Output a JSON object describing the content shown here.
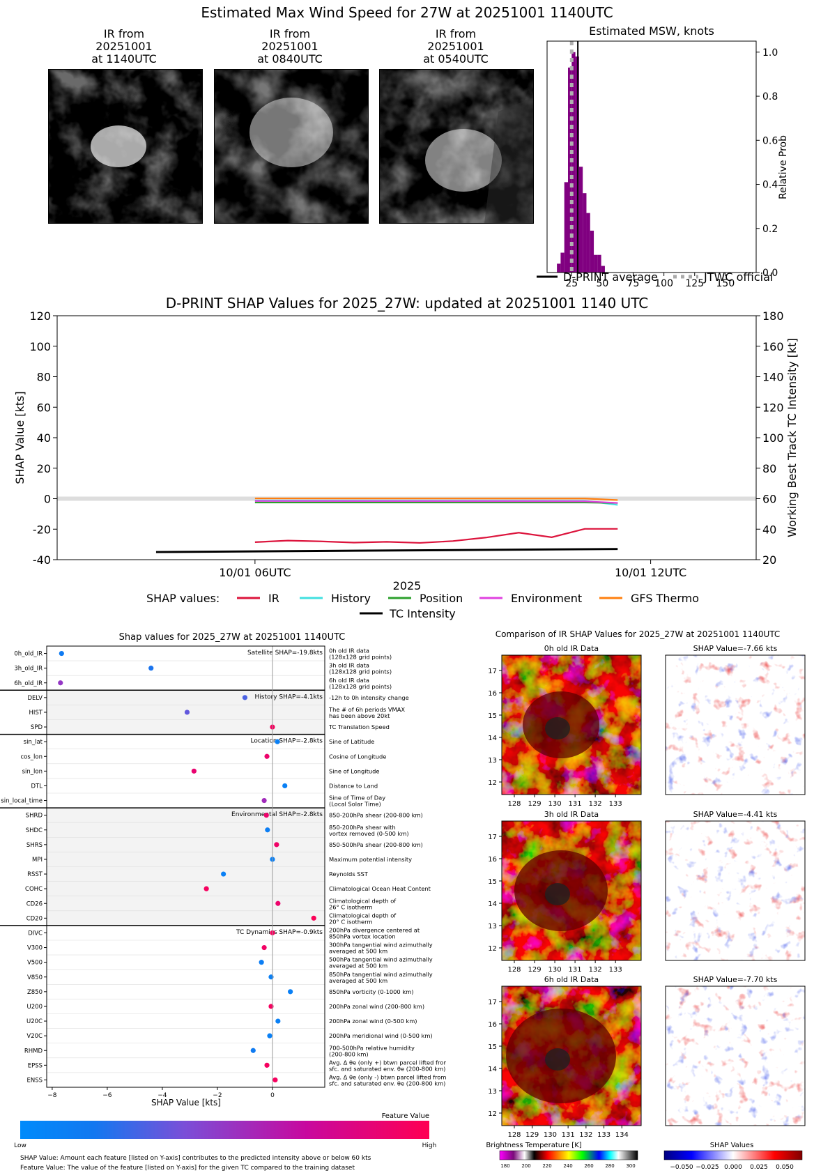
{
  "header": {
    "title": "Estimated Max Wind Speed for 27W at 20251001 1140UTC"
  },
  "ir_panels": [
    {
      "label": "IR from\n20251001\nat 1140UTC"
    },
    {
      "label": "IR from\n20251001\nat 0840UTC"
    },
    {
      "label": "IR from\n20251001\nat 0540UTC"
    }
  ],
  "chart_data": [
    {
      "id": "msw_histogram",
      "type": "bar",
      "title": "Estimated MSW, knots",
      "ylabel": "Relative Prob",
      "xlim": [
        5,
        175
      ],
      "ylim": [
        0,
        1.05
      ],
      "xticks": [
        25,
        50,
        75,
        100,
        125,
        150
      ],
      "yticks": [
        "0.0",
        "0.2",
        "0.4",
        "0.6",
        "0.8",
        "1.0"
      ],
      "bins_x": [
        13,
        16,
        19,
        22,
        25,
        28,
        31,
        34,
        37,
        40,
        43,
        46,
        49
      ],
      "bin_width": 3,
      "values": [
        0.04,
        0.09,
        0.41,
        0.93,
        1.0,
        0.98,
        0.48,
        0.36,
        0.27,
        0.19,
        0.08,
        0.08,
        0.03
      ],
      "dprint_average": 30,
      "jtwc_official": 25,
      "legend": [
        "D-PRINT average",
        "JTWC official"
      ]
    },
    {
      "id": "shap_timeseries",
      "type": "line",
      "title": "D-PRINT SHAP Values for 2025_27W: updated at 20251001 1140 UTC",
      "ylabel": "SHAP Value [kts]",
      "ylabel_right": "Working Best Track TC Intensity [kt]",
      "xlabel": "2025",
      "xticks": [
        "10/01 06UTC",
        "10/01 12UTC"
      ],
      "x_hours": [
        4.5,
        5.0,
        5.5,
        6.0,
        6.5,
        7.0,
        7.5,
        8.0,
        8.5,
        9.0,
        9.5,
        10.0,
        10.5,
        11.0,
        11.5,
        12.0,
        12.5,
        13.0,
        13.5,
        14.0
      ],
      "ylim": [
        -40,
        120
      ],
      "ylim_right": [
        20,
        180
      ],
      "yticks": [
        -40,
        -20,
        0,
        20,
        40,
        60,
        80,
        100,
        120
      ],
      "yticks_right": [
        20,
        40,
        60,
        80,
        100,
        120,
        140,
        160,
        180
      ],
      "series": [
        {
          "name": "IR",
          "color": "#dc143c",
          "x": [
            6.0,
            6.5,
            7.0,
            7.5,
            8.0,
            8.5,
            9.0,
            9.5,
            10.0,
            10.5,
            11.0,
            11.5
          ],
          "values": [
            -28.5,
            -27.5,
            -28,
            -28.8,
            -28.3,
            -29,
            -27.8,
            -25.5,
            -22.3,
            -25.3,
            -19.8,
            -19.8
          ]
        },
        {
          "name": "History",
          "color": "#40e0e0",
          "x": [
            6.0,
            11.0,
            11.5
          ],
          "values": [
            -1.2,
            -1.4,
            -4.1
          ]
        },
        {
          "name": "Position",
          "color": "#2ca02c",
          "x": [
            6.0,
            11.0,
            11.5
          ],
          "values": [
            -2.5,
            -2.5,
            -2.8
          ]
        },
        {
          "name": "Environment",
          "color": "#e040e0",
          "x": [
            6.0,
            11.0,
            11.5
          ],
          "values": [
            -1.5,
            -1.7,
            -2.8
          ]
        },
        {
          "name": "GFS Thermo",
          "color": "#ff7f0e",
          "x": [
            6.0,
            11.0,
            11.5
          ],
          "values": [
            0.2,
            0.1,
            -0.9
          ]
        },
        {
          "name": "TC Intensity",
          "color": "#000000",
          "x": [
            4.5,
            11.5
          ],
          "values": [
            25,
            27
          ],
          "axis": "right"
        }
      ],
      "legend_title": "SHAP values:"
    },
    {
      "id": "shap_features",
      "type": "scatter",
      "title": "Shap values for 2025_27W at 20251001 1140UTC",
      "xlabel": "SHAP Value [kts]",
      "xlim": [
        -8.2,
        1.9
      ],
      "xticks": [
        -8,
        -6,
        -4,
        -2,
        0
      ],
      "groups": [
        {
          "label": "Satellite SHAP=-19.8kts",
          "shaded": false,
          "features": [
            {
              "name": "0h_old_IR",
              "desc": "0h old IR data\n(128x128 grid points)",
              "shap": -7.66,
              "value": 0.15
            },
            {
              "name": "3h_old_IR",
              "desc": "3h old IR data\n(128x128 grid points)",
              "shap": -4.41,
              "value": 0.2
            },
            {
              "name": "6h_old_IR",
              "desc": "6h old IR data\n(128x128 grid points)",
              "shap": -7.7,
              "value": 0.5
            }
          ]
        },
        {
          "label": "History SHAP=-4.1kts",
          "shaded": true,
          "features": [
            {
              "name": "DELV",
              "desc": "-12h to 0h intensity change",
              "shap": -1.0,
              "value": 0.3
            },
            {
              "name": "HIST",
              "desc": "The # of 6h periods VMAX\nhas been above 20kt",
              "shap": -3.1,
              "value": 0.35
            },
            {
              "name": "SPD",
              "desc": "TC Translation Speed",
              "shap": 0.0,
              "value": 0.95
            }
          ]
        },
        {
          "label": "Location SHAP=-2.8kts",
          "shaded": false,
          "features": [
            {
              "name": "sin_lat",
              "desc": "Sine of Latitude",
              "shap": 0.18,
              "value": 0.1
            },
            {
              "name": "cos_lon",
              "desc": "Cosine of Longitude",
              "shap": -0.2,
              "value": 0.9
            },
            {
              "name": "sin_lon",
              "desc": "Sine of Longitude",
              "shap": -2.85,
              "value": 0.88
            },
            {
              "name": "DTL",
              "desc": "Distance to Land",
              "shap": 0.45,
              "value": 0.1
            },
            {
              "name": "sin_local_time",
              "desc": "Sine of Time of Day\n(Local Solar Time)",
              "shap": -0.3,
              "value": 0.55
            }
          ]
        },
        {
          "label": "Environmental SHAP=-2.8kts",
          "shaded": true,
          "features": [
            {
              "name": "SHRD",
              "desc": "850-200hPa shear (200-800 km)",
              "shap": -0.22,
              "value": 0.9
            },
            {
              "name": "SHDC",
              "desc": "850-200hPa shear with\nvortex removed (0-500 km)",
              "shap": -0.18,
              "value": 0.12
            },
            {
              "name": "SHRS",
              "desc": "850-500hPa shear (200-800 km)",
              "shap": 0.15,
              "value": 0.92
            },
            {
              "name": "MPI",
              "desc": "Maximum potential intensity",
              "shap": 0.0,
              "value": 0.1
            },
            {
              "name": "RSST",
              "desc": "Reynolds SST",
              "shap": -1.78,
              "value": 0.1
            },
            {
              "name": "COHC",
              "desc": "Climatological Ocean Heat Content",
              "shap": -2.4,
              "value": 0.95
            },
            {
              "name": "CD26",
              "desc": "Climatological depth of\n26° C isotherm",
              "shap": 0.2,
              "value": 0.9
            },
            {
              "name": "CD20",
              "desc": "Climatological depth of\n20° C isotherm",
              "shap": 1.5,
              "value": 0.98
            }
          ]
        },
        {
          "label": "TC Dynamics SHAP=-0.9kts",
          "shaded": false,
          "features": [
            {
              "name": "DIVC",
              "desc": "200hPa divergence centered at\n850hPa vortex location",
              "shap": 0.0,
              "value": 0.95
            },
            {
              "name": "V300",
              "desc": "300hPa tangential wind azimuthally\naveraged at 500 km",
              "shap": -0.3,
              "value": 0.93
            },
            {
              "name": "V500",
              "desc": "500hPa tangential wind azimuthally\naveraged at 500 km",
              "shap": -0.4,
              "value": 0.12
            },
            {
              "name": "V850",
              "desc": "850hPa tangential wind azimuthally\naveraged at 500 km",
              "shap": -0.05,
              "value": 0.1
            },
            {
              "name": "Z850",
              "desc": "850hPa vorticity (0-1000 km)",
              "shap": 0.65,
              "value": 0.1
            },
            {
              "name": "U200",
              "desc": "200hPa zonal wind (200-800 km)",
              "shap": -0.05,
              "value": 0.95
            },
            {
              "name": "U20C",
              "desc": "200hPa zonal wind (0-500 km)",
              "shap": 0.2,
              "value": 0.1
            },
            {
              "name": "V20C",
              "desc": "200hPa meridional wind (0-500 km)",
              "shap": -0.1,
              "value": 0.1
            },
            {
              "name": "RHMD",
              "desc": "700-500hPa relative humidity\n(200-800 km)",
              "shap": -0.7,
              "value": 0.15
            },
            {
              "name": "EPSS",
              "desc": "Avg. Δ θe (only +) btwn parcel lifted from\nsfc. and saturated env. θe (200-800 km)",
              "shap": -0.2,
              "value": 0.95
            },
            {
              "name": "ENSS",
              "desc": "Avg. Δ θe (only -) btwn parcel lifted from\nsfc. and saturated env. θe (200-800 km)",
              "shap": 0.1,
              "value": 0.95
            }
          ]
        }
      ],
      "colorbar": {
        "title": "Feature Value",
        "low": "Low",
        "high": "High"
      },
      "notes": [
        "SHAP Value: Amount each feature [listed on Y-axis] contributes to the predicted intensity above or below 60 kts",
        "Feature Value: The value of the feature [listed on Y-axis] for the given TC compared to the training dataset"
      ]
    },
    {
      "id": "ir_shap_comparison",
      "type": "heatmap",
      "title": "Comparison of IR SHAP Values for 2025_27W at 20251001 1140UTC",
      "panels": [
        {
          "title": "0h old IR Data",
          "shap_title": "SHAP Value=-7.66 kts"
        },
        {
          "title": "3h old IR Data",
          "shap_title": "SHAP Value=-4.41 kts"
        },
        {
          "title": "6h old IR Data",
          "shap_title": "SHAP Value=-7.70 kts"
        }
      ],
      "lon_ticks": [
        "128",
        "129",
        "130",
        "131",
        "132",
        "133"
      ],
      "lon_ticks_last": [
        "128",
        "129",
        "130",
        "131",
        "132",
        "133",
        "134"
      ],
      "lat_ticks": [
        "12",
        "13",
        "14",
        "15",
        "16",
        "17"
      ],
      "bt_colorbar": {
        "title": "Brightness Temperature [K]",
        "ticks": [
          "180",
          "200",
          "220",
          "240",
          "260",
          "280",
          "300"
        ]
      },
      "shap_colorbar": {
        "title": "SHAP Values",
        "ticks": [
          "−0.050",
          "−0.025",
          "0.000",
          "0.025",
          "0.050"
        ]
      }
    }
  ]
}
